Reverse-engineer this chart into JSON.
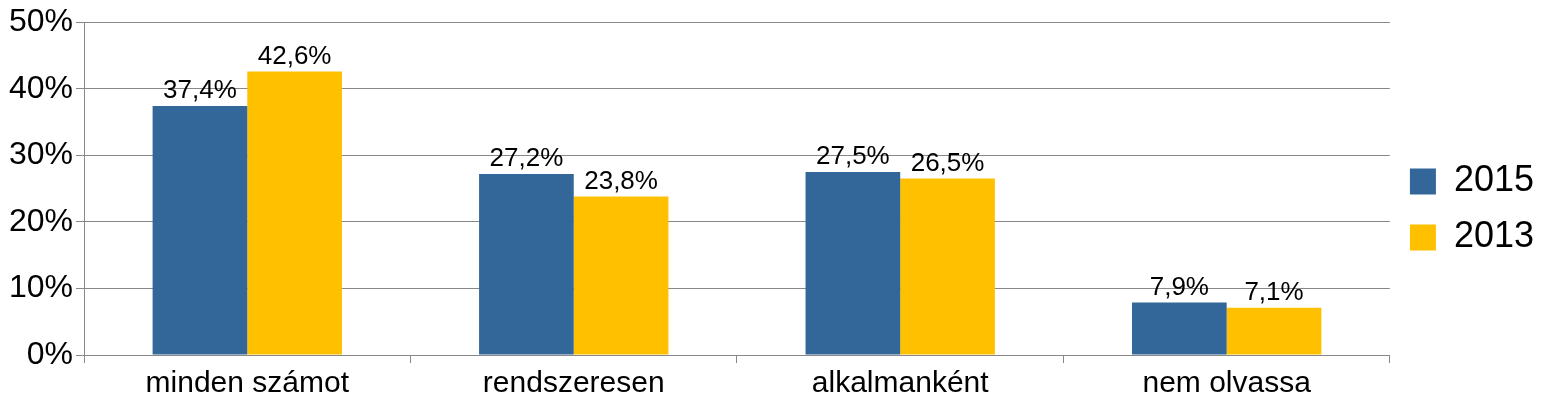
{
  "chart_data": {
    "type": "bar",
    "categories": [
      "minden számot",
      "rendszeresen",
      "alkalmanként",
      "nem olvassa"
    ],
    "series": [
      {
        "name": "2015",
        "color": "#336699",
        "values": [
          37.4,
          27.2,
          27.5,
          7.9
        ],
        "value_labels": [
          "37,4%",
          "27,2%",
          "27,5%",
          "7,9%"
        ]
      },
      {
        "name": "2013",
        "color": "#ffc000",
        "values": [
          42.6,
          23.8,
          26.5,
          7.1
        ],
        "value_labels": [
          "42,6%",
          "23,8%",
          "26,5%",
          "7,1%"
        ]
      }
    ],
    "ylim": [
      0,
      50
    ],
    "yticks": [
      {
        "value": 0,
        "label": "0%"
      },
      {
        "value": 10,
        "label": "10%"
      },
      {
        "value": 20,
        "label": "20%"
      },
      {
        "value": 30,
        "label": "30%"
      },
      {
        "value": 40,
        "label": "40%"
      },
      {
        "value": 50,
        "label": "50%"
      }
    ],
    "grid": "y",
    "legend": "right"
  }
}
